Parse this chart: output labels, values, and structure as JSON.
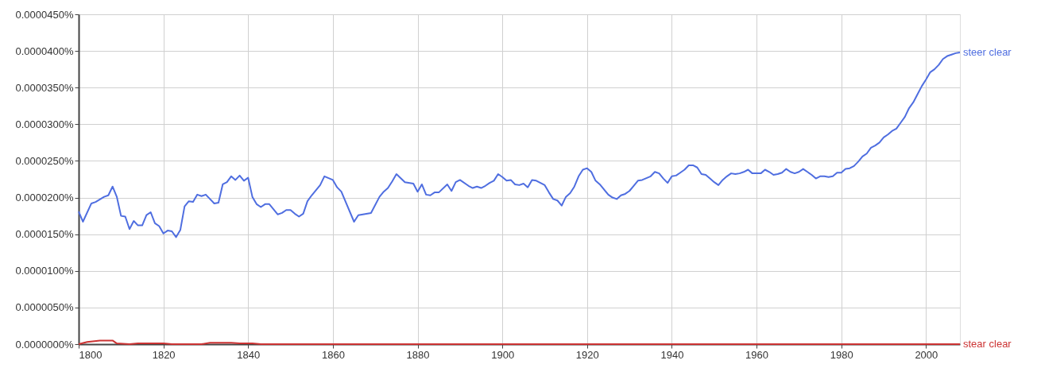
{
  "chart_data": {
    "type": "line",
    "xlim": [
      1800,
      2008
    ],
    "xticks": [
      1800,
      1820,
      1840,
      1860,
      1880,
      1900,
      1920,
      1940,
      1960,
      1980,
      2000
    ],
    "ylim": [
      0,
      4.5e-05
    ],
    "yticks": [
      {
        "value": 0,
        "label": "0.0000000%"
      },
      {
        "value": 5e-06,
        "label": "0.0000050%"
      },
      {
        "value": 1e-05,
        "label": "0.0000100%"
      },
      {
        "value": 1.5e-05,
        "label": "0.0000150%"
      },
      {
        "value": 2e-05,
        "label": "0.0000200%"
      },
      {
        "value": 2.5e-05,
        "label": "0.0000250%"
      },
      {
        "value": 3e-05,
        "label": "0.0000300%"
      },
      {
        "value": 3.5e-05,
        "label": "0.0000350%"
      },
      {
        "value": 4e-05,
        "label": "0.0000400%"
      },
      {
        "value": 4.5e-05,
        "label": "0.0000450%"
      }
    ],
    "grid": true,
    "legend": false,
    "marker": "none",
    "line_style": "solid",
    "series": [
      {
        "name": "steer clear",
        "color": "#4f6ee0",
        "x": [
          1800,
          1801,
          1803,
          1804,
          1806,
          1807,
          1808,
          1809,
          1810,
          1811,
          1812,
          1813,
          1814,
          1815,
          1816,
          1817,
          1818,
          1819,
          1820,
          1821,
          1822,
          1823,
          1824,
          1825,
          1826,
          1827,
          1828,
          1829,
          1830,
          1832,
          1833,
          1834,
          1835,
          1836,
          1837,
          1838,
          1839,
          1840,
          1841,
          1842,
          1843,
          1844,
          1845,
          1846,
          1847,
          1848,
          1849,
          1850,
          1851,
          1852,
          1853,
          1854,
          1855,
          1856,
          1857,
          1858,
          1860,
          1861,
          1862,
          1865,
          1866,
          1869,
          1871,
          1872,
          1873,
          1874,
          1875,
          1877,
          1879,
          1880,
          1881,
          1882,
          1883,
          1884,
          1885,
          1887,
          1888,
          1889,
          1890,
          1892,
          1893,
          1894,
          1895,
          1896,
          1897,
          1898,
          1899,
          1900,
          1901,
          1902,
          1903,
          1904,
          1905,
          1906,
          1907,
          1908,
          1909,
          1910,
          1911,
          1912,
          1913,
          1914,
          1915,
          1916,
          1917,
          1918,
          1919,
          1920,
          1921,
          1922,
          1923,
          1925,
          1926,
          1927,
          1928,
          1929,
          1930,
          1931,
          1932,
          1933,
          1935,
          1936,
          1937,
          1938,
          1939,
          1940,
          1941,
          1942,
          1943,
          1944,
          1945,
          1946,
          1947,
          1948,
          1949,
          1950,
          1951,
          1952,
          1953,
          1954,
          1955,
          1956,
          1957,
          1958,
          1959,
          1960,
          1961,
          1962,
          1963,
          1964,
          1965,
          1966,
          1967,
          1968,
          1969,
          1970,
          1971,
          1972,
          1973,
          1974,
          1975,
          1976,
          1977,
          1978,
          1979,
          1980,
          1981,
          1982,
          1983,
          1984,
          1985,
          1986,
          1987,
          1988,
          1989,
          1990,
          1991,
          1992,
          1993,
          1994,
          1995,
          1996,
          1997,
          1998,
          1999,
          2000,
          2001,
          2002,
          2003,
          2004,
          2005,
          2006,
          2007,
          2008
        ],
        "values": [
          1.81e-05,
          1.67e-05,
          1.92e-05,
          1.94e-05,
          2.01e-05,
          2.03e-05,
          2.15e-05,
          2.01e-05,
          1.75e-05,
          1.74e-05,
          1.57e-05,
          1.68e-05,
          1.62e-05,
          1.62e-05,
          1.76e-05,
          1.8e-05,
          1.65e-05,
          1.61e-05,
          1.51e-05,
          1.55e-05,
          1.54e-05,
          1.46e-05,
          1.56e-05,
          1.88e-05,
          1.95e-05,
          1.94e-05,
          2.04e-05,
          2.02e-05,
          2.04e-05,
          1.92e-05,
          1.93e-05,
          2.18e-05,
          2.21e-05,
          2.29e-05,
          2.24e-05,
          2.3e-05,
          2.23e-05,
          2.27e-05,
          2.01e-05,
          1.91e-05,
          1.87e-05,
          1.91e-05,
          1.91e-05,
          1.84e-05,
          1.77e-05,
          1.79e-05,
          1.83e-05,
          1.83e-05,
          1.78e-05,
          1.74e-05,
          1.78e-05,
          1.95e-05,
          2.03e-05,
          2.1e-05,
          2.17e-05,
          2.29e-05,
          2.24e-05,
          2.14e-05,
          2.08e-05,
          1.67e-05,
          1.76e-05,
          1.79e-05,
          2.01e-05,
          2.08e-05,
          2.13e-05,
          2.22e-05,
          2.32e-05,
          2.21e-05,
          2.19e-05,
          2.08e-05,
          2.18e-05,
          2.04e-05,
          2.03e-05,
          2.07e-05,
          2.07e-05,
          2.18e-05,
          2.09e-05,
          2.21e-05,
          2.24e-05,
          2.16e-05,
          2.13e-05,
          2.15e-05,
          2.13e-05,
          2.16e-05,
          2.2e-05,
          2.23e-05,
          2.32e-05,
          2.28e-05,
          2.23e-05,
          2.24e-05,
          2.18e-05,
          2.17e-05,
          2.19e-05,
          2.14e-05,
          2.24e-05,
          2.23e-05,
          2.2e-05,
          2.17e-05,
          2.07e-05,
          1.98e-05,
          1.96e-05,
          1.89e-05,
          2.01e-05,
          2.06e-05,
          2.15e-05,
          2.29e-05,
          2.38e-05,
          2.4e-05,
          2.35e-05,
          2.23e-05,
          2.18e-05,
          2.04e-05,
          2e-05,
          1.98e-05,
          2.03e-05,
          2.05e-05,
          2.09e-05,
          2.16e-05,
          2.23e-05,
          2.24e-05,
          2.29e-05,
          2.35e-05,
          2.33e-05,
          2.26e-05,
          2.2e-05,
          2.29e-05,
          2.3e-05,
          2.34e-05,
          2.38e-05,
          2.44e-05,
          2.44e-05,
          2.41e-05,
          2.32e-05,
          2.31e-05,
          2.26e-05,
          2.21e-05,
          2.17e-05,
          2.24e-05,
          2.29e-05,
          2.33e-05,
          2.32e-05,
          2.33e-05,
          2.35e-05,
          2.38e-05,
          2.33e-05,
          2.33e-05,
          2.33e-05,
          2.38e-05,
          2.35e-05,
          2.31e-05,
          2.32e-05,
          2.34e-05,
          2.39e-05,
          2.35e-05,
          2.33e-05,
          2.35e-05,
          2.39e-05,
          2.35e-05,
          2.31e-05,
          2.26e-05,
          2.29e-05,
          2.29e-05,
          2.28e-05,
          2.29e-05,
          2.34e-05,
          2.34e-05,
          2.39e-05,
          2.4e-05,
          2.43e-05,
          2.49e-05,
          2.56e-05,
          2.6e-05,
          2.68e-05,
          2.71e-05,
          2.75e-05,
          2.82e-05,
          2.86e-05,
          2.91e-05,
          2.94e-05,
          3.02e-05,
          3.1e-05,
          3.22e-05,
          3.3e-05,
          3.41e-05,
          3.52e-05,
          3.61e-05,
          3.71e-05,
          3.75e-05,
          3.81e-05,
          3.89e-05,
          3.93e-05,
          3.95e-05,
          3.97e-05,
          3.98e-05
        ]
      },
      {
        "name": "stear clear",
        "color": "#cc3333",
        "x": [
          1800,
          1802,
          1805,
          1808,
          1809,
          1812,
          1814,
          1820,
          1822,
          1829,
          1831,
          1836,
          1838,
          1841,
          1843,
          2008
        ],
        "values": [
          0,
          3e-07,
          5e-07,
          5e-07,
          1e-07,
          0,
          1e-07,
          1e-07,
          0,
          0,
          2e-07,
          2e-07,
          1e-07,
          1e-07,
          0,
          0
        ]
      }
    ]
  }
}
